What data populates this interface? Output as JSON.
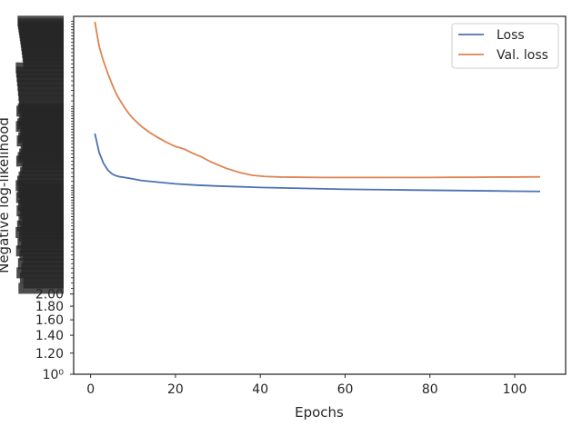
{
  "chart_data": {
    "type": "line",
    "title": "",
    "xlabel": "Epochs",
    "ylabel": "Negative log-likelihood",
    "xlim": [
      -4,
      112
    ],
    "ylim": [
      1.0,
      22.0
    ],
    "yscale": "log",
    "grid": false,
    "legend_position": "top-right",
    "x_ticks": [
      0,
      20,
      40,
      60,
      80,
      100
    ],
    "x_tick_labels": [
      "0",
      "20",
      "40",
      "60",
      "80",
      "100"
    ],
    "y_tick_labels_visible": [
      "10⁰",
      "1.20",
      "1.40",
      "1.60",
      "1.80",
      "2.00"
    ],
    "y_ticks_visible": [
      1.0,
      1.2,
      1.4,
      1.6,
      1.8,
      2.0
    ],
    "series": [
      {
        "name": "Loss",
        "color": "#4c72b0",
        "x": [
          1,
          2,
          3,
          4,
          5,
          6,
          7,
          8,
          9,
          10,
          12,
          15,
          20,
          25,
          30,
          35,
          40,
          45,
          50,
          55,
          60,
          65,
          70,
          75,
          80,
          85,
          90,
          95,
          100,
          106
        ],
        "y": [
          8.0,
          6.8,
          6.2,
          5.85,
          5.65,
          5.55,
          5.5,
          5.47,
          5.44,
          5.4,
          5.33,
          5.27,
          5.18,
          5.12,
          5.08,
          5.05,
          5.02,
          5.0,
          4.98,
          4.96,
          4.94,
          4.93,
          4.92,
          4.91,
          4.9,
          4.89,
          4.88,
          4.87,
          4.86,
          4.85
        ]
      },
      {
        "name": "Val. loss",
        "color": "#dd8452",
        "x": [
          1,
          2,
          3,
          4,
          5,
          6,
          7,
          8,
          9,
          10,
          12,
          14,
          16,
          18,
          20,
          22,
          24,
          26,
          28,
          30,
          32,
          35,
          38,
          41,
          45,
          50,
          55,
          60,
          65,
          70,
          75,
          80,
          85,
          90,
          95,
          100,
          106
        ],
        "y": [
          21.0,
          17.0,
          15.0,
          13.5,
          12.3,
          11.3,
          10.6,
          10.0,
          9.5,
          9.1,
          8.5,
          8.05,
          7.7,
          7.4,
          7.15,
          7.0,
          6.75,
          6.55,
          6.3,
          6.1,
          5.92,
          5.72,
          5.58,
          5.52,
          5.49,
          5.48,
          5.47,
          5.47,
          5.47,
          5.47,
          5.47,
          5.47,
          5.48,
          5.48,
          5.49,
          5.49,
          5.5
        ]
      }
    ]
  }
}
